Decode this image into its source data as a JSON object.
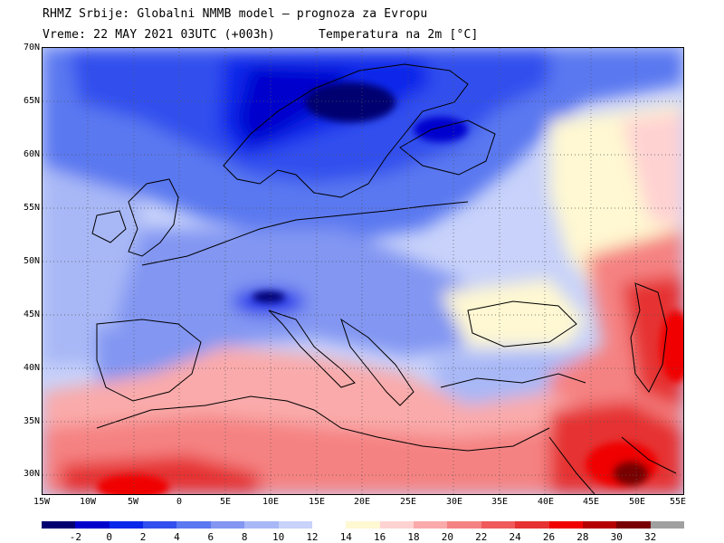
{
  "header": {
    "line1": "RHMZ Srbije: Globalni NMMB model — prognoza za Evropu",
    "line2_time": "Vreme: 22 MAY 2021 03UTC (+003h)",
    "line2_field": "Temperatura na 2m [°C]"
  },
  "map": {
    "lat_labels": [
      "70N",
      "65N",
      "60N",
      "55N",
      "50N",
      "45N",
      "40N",
      "35N",
      "30N"
    ],
    "lon_labels": [
      "15W",
      "10W",
      "5W",
      "0",
      "5E",
      "10E",
      "15E",
      "20E",
      "25E",
      "30E",
      "35E",
      "40E",
      "45E",
      "50E",
      "55E"
    ],
    "lon_range": [
      -15,
      55
    ],
    "lat_range": [
      28,
      70
    ],
    "grid": "dotted"
  },
  "colorbar": {
    "labels": [
      "-2",
      "0",
      "2",
      "4",
      "6",
      "8",
      "10",
      "12",
      "14",
      "16",
      "18",
      "20",
      "22",
      "24",
      "26",
      "28",
      "30",
      "32"
    ],
    "colors": [
      "#000070",
      "#0000cd",
      "#0a28ea",
      "#3250ee",
      "#5a78f0",
      "#8296f2",
      "#a8b8f6",
      "#c8d2fa",
      "#ffffff",
      "#fff8d2",
      "#ffd2d2",
      "#faaaaa",
      "#f58282",
      "#f05a5a",
      "#e63232",
      "#f00000",
      "#b40000",
      "#780000",
      "#a0a0a0"
    ]
  }
}
